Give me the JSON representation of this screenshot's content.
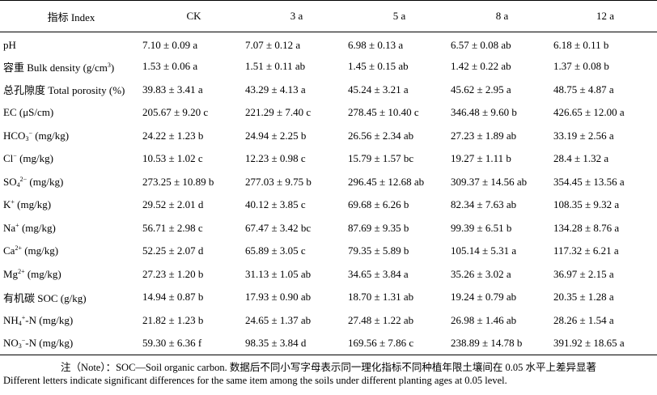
{
  "table": {
    "headers": [
      "指标 Index",
      "CK",
      "3 a",
      "5 a",
      "8 a",
      "12 a"
    ],
    "rows": [
      {
        "label": {
          "pre": "pH",
          "sub": "",
          "sup": "",
          "post": ""
        },
        "values": [
          "7.10 ± 0.09 a",
          "7.07 ± 0.12 a",
          "6.98 ± 0.13 a",
          "6.57 ± 0.08 ab",
          "6.18 ± 0.11 b"
        ]
      },
      {
        "label": {
          "pre": "容重 Bulk density (g/cm",
          "sub": "",
          "sup": "3",
          "post": ")"
        },
        "values": [
          "1.53 ± 0.06 a",
          "1.51 ± 0.11 ab",
          "1.45 ± 0.15 ab",
          "1.42 ± 0.22 ab",
          "1.37 ± 0.08 b"
        ]
      },
      {
        "label": {
          "pre": "总孔隙度 Total porosity (%)",
          "sub": "",
          "sup": "",
          "post": ""
        },
        "values": [
          "39.83 ± 3.41 a",
          "43.29 ± 4.13 a",
          "45.24 ± 3.21 a",
          "45.62 ± 2.95 a",
          "48.75 ± 4.87 a"
        ]
      },
      {
        "label": {
          "pre": "EC (μS/cm)",
          "sub": "",
          "sup": "",
          "post": ""
        },
        "values": [
          "205.67 ± 9.20 c",
          "221.29 ± 7.40 c",
          "278.45 ± 10.40 c",
          "346.48 ± 9.60 b",
          "426.65 ± 12.00 a"
        ]
      },
      {
        "label": {
          "pre": "HCO",
          "sub": "3",
          "sup": "−",
          "post": " (mg/kg)"
        },
        "values": [
          "24.22 ± 1.23 b",
          "24.94 ± 2.25 b",
          "26.56 ± 2.34 ab",
          "27.23 ± 1.89 ab",
          "33.19 ± 2.56 a"
        ]
      },
      {
        "label": {
          "pre": "Cl",
          "sub": "",
          "sup": "−",
          "post": " (mg/kg)"
        },
        "values": [
          "10.53 ± 1.02 c",
          "12.23 ± 0.98 c",
          "15.79 ± 1.57 bc",
          "19.27 ± 1.11 b",
          "28.4 ± 1.32 a"
        ]
      },
      {
        "label": {
          "pre": "SO",
          "sub": "4",
          "sup": "2−",
          "post": " (mg/kg)"
        },
        "values": [
          "273.25 ± 10.89 b",
          "277.03 ± 9.75 b",
          "296.45 ± 12.68 ab",
          "309.37 ± 14.56 ab",
          "354.45 ± 13.56 a"
        ]
      },
      {
        "label": {
          "pre": "K",
          "sub": "",
          "sup": "+",
          "post": " (mg/kg)"
        },
        "values": [
          "29.52 ± 2.01 d",
          "40.12 ± 3.85 c",
          "69.68 ± 6.26 b",
          "82.34 ± 7.63 ab",
          "108.35 ± 9.32 a"
        ]
      },
      {
        "label": {
          "pre": "Na",
          "sub": "",
          "sup": "+",
          "post": " (mg/kg)"
        },
        "values": [
          "56.71 ± 2.98 c",
          "67.47 ± 3.42 bc",
          "87.69 ± 9.35 b",
          "99.39 ± 6.51 b",
          "134.28 ± 8.76 a"
        ]
      },
      {
        "label": {
          "pre": "Ca",
          "sub": "",
          "sup": "2+",
          "post": " (mg/kg)"
        },
        "values": [
          "52.25 ± 2.07 d",
          "65.89 ± 3.05 c",
          "79.35 ± 5.89 b",
          "105.14 ± 5.31 a",
          "117.32 ± 6.21 a"
        ]
      },
      {
        "label": {
          "pre": "Mg",
          "sub": "",
          "sup": "2+",
          "post": " (mg/kg)"
        },
        "values": [
          "27.23 ± 1.20 b",
          "31.13 ± 1.05 ab",
          "34.65 ± 3.84 a",
          "35.26 ± 3.02 a",
          "36.97 ± 2.15 a"
        ]
      },
      {
        "label": {
          "pre": "有机碳 SOC (g/kg)",
          "sub": "",
          "sup": "",
          "post": ""
        },
        "values": [
          "14.94 ± 0.87 b",
          "17.93 ± 0.90 ab",
          "18.70 ± 1.31 ab",
          "19.24 ± 0.79 ab",
          "20.35 ± 1.28 a"
        ]
      },
      {
        "label": {
          "pre": "NH",
          "sub": "4",
          "sup": "+",
          "post": "-N (mg/kg)"
        },
        "values": [
          "21.82 ± 1.23 b",
          "24.65 ± 1.37 ab",
          "27.48 ± 1.22 ab",
          "26.98 ± 1.46 ab",
          "28.26 ± 1.54 a"
        ]
      },
      {
        "label": {
          "pre": "NO",
          "sub": "3",
          "sup": "−",
          "post": "-N (mg/kg)"
        },
        "values": [
          "59.30 ± 6.36 f",
          "98.35 ± 3.84 d",
          "169.56 ± 7.86 c",
          "238.89 ± 14.78 b",
          "391.92 ± 18.65 a"
        ]
      }
    ]
  },
  "note": {
    "zh": "注（Note）：SOC—Soil organic carbon. 数据后不同小写字母表示同一理化指标不同种植年限土壤间在 0.05 水平上差异显著",
    "en": "Different letters indicate significant differences for the same item among the soils under different planting ages at 0.05 level."
  }
}
